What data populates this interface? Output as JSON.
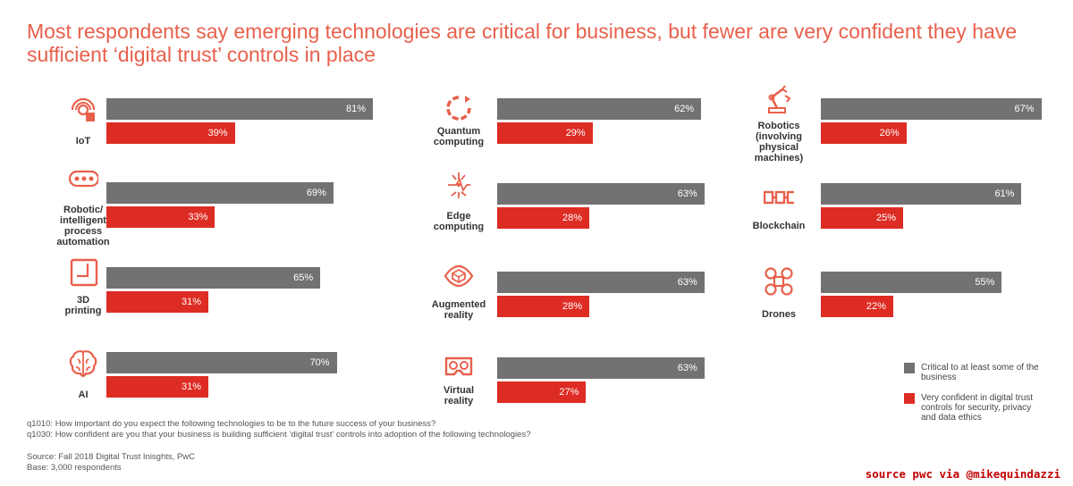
{
  "title": "Most respondents say emerging technologies are critical for business, but fewer are very confident they have sufficient ‘digital trust’ controls in place",
  "colors": {
    "critical": "#727272",
    "confident": "#dd2c23",
    "accent": "#e8604c"
  },
  "legend": [
    {
      "label": "Critical to at least some of the business",
      "color": "#727272"
    },
    {
      "label": "Very confident in digital trust controls for security, privacy and data ethics",
      "color": "#dd2c23"
    }
  ],
  "chart_data": {
    "type": "bar",
    "categories": [
      "IoT",
      "Robotic/ intelligent process automation",
      "3D printing",
      "AI",
      "Quantum computing",
      "Edge computing",
      "Augmented reality",
      "Virtual reality",
      "Robotics (involving physical machines)",
      "Blockchain",
      "Drones"
    ],
    "series": [
      {
        "name": "Critical to at least some of the business",
        "values": [
          81,
          69,
          65,
          70,
          62,
          63,
          63,
          63,
          67,
          61,
          55
        ]
      },
      {
        "name": "Very confident in digital trust controls for security, privacy and data ethics",
        "values": [
          39,
          33,
          31,
          31,
          29,
          28,
          28,
          27,
          26,
          25,
          22
        ]
      }
    ],
    "value_suffix": "%",
    "xlim": [
      0,
      100
    ]
  },
  "technologies": [
    {
      "label_lines": [
        "IoT"
      ],
      "icon": "iot-icon"
    },
    {
      "label_lines": [
        "Robotic/",
        "intelligent",
        "process",
        "automation"
      ],
      "icon": "robotic-process-automation-icon"
    },
    {
      "label_lines": [
        "3D",
        "printing"
      ],
      "icon": "3d-printing-icon"
    },
    {
      "label_lines": [
        "AI"
      ],
      "icon": "ai-brain-icon"
    },
    {
      "label_lines": [
        "Quantum",
        "computing"
      ],
      "icon": "quantum-computing-icon"
    },
    {
      "label_lines": [
        "Edge",
        "computing"
      ],
      "icon": "edge-computing-icon"
    },
    {
      "label_lines": [
        "Augmented",
        "reality"
      ],
      "icon": "augmented-reality-icon"
    },
    {
      "label_lines": [
        "Virtual",
        "reality"
      ],
      "icon": "virtual-reality-icon"
    },
    {
      "label_lines": [
        "Robotics",
        "(involving",
        "physical",
        "machines)"
      ],
      "icon": "robot-arm-icon"
    },
    {
      "label_lines": [
        "Blockchain"
      ],
      "icon": "blockchain-icon"
    },
    {
      "label_lines": [
        "Drones"
      ],
      "icon": "drone-icon"
    }
  ],
  "notes": [
    "q1010: How important do you expect the following technologies to be to the future success of your business?",
    "q1030: How confident are you that your business is building sufficient ‘digital trust’ controls into adoption of the following technologies?"
  ],
  "source": [
    "Source: Fall 2018 Digital Trust Inisghts, PwC",
    "Base: 3,000 respondents"
  ],
  "credit": "source pwc via @mikequindazzi"
}
